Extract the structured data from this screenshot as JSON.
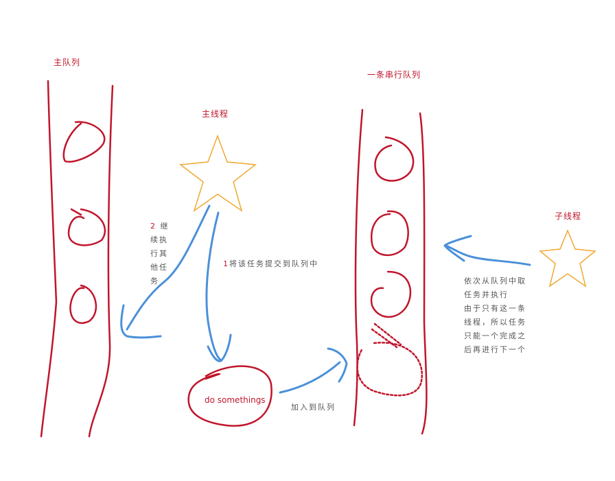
{
  "labels": {
    "main_queue": "主队列",
    "main_thread": "主线程",
    "serial_queue": "一条串行队列",
    "child_thread": "子线程",
    "task_box": "do somethings",
    "add_to_queue": "加入到队列"
  },
  "step1": {
    "num": "1",
    "text": "将该任务提交到队列中"
  },
  "step2": {
    "num": "2",
    "chars": [
      "继",
      "续执",
      "行其",
      "他任",
      "务"
    ]
  },
  "child_note": [
    "依次从队列中取",
    "任务并执行",
    "由于只有这一条",
    "线程，所以任务",
    "只能一个完成之",
    "后再进行下一个"
  ],
  "colors": {
    "red": "#c0152b",
    "blue": "#4a90d9",
    "orange": "#f0a830",
    "gray": "#555555"
  }
}
